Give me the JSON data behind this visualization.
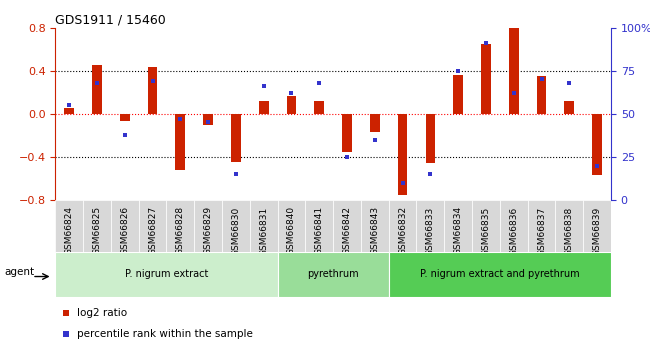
{
  "title": "GDS1911 / 15460",
  "samples": [
    "GSM66824",
    "GSM66825",
    "GSM66826",
    "GSM66827",
    "GSM66828",
    "GSM66829",
    "GSM66830",
    "GSM66831",
    "GSM66840",
    "GSM66841",
    "GSM66842",
    "GSM66843",
    "GSM66832",
    "GSM66833",
    "GSM66834",
    "GSM66835",
    "GSM66836",
    "GSM66837",
    "GSM66838",
    "GSM66839"
  ],
  "log2_ratio": [
    0.05,
    0.45,
    -0.07,
    0.43,
    -0.52,
    -0.1,
    -0.45,
    0.12,
    0.17,
    0.12,
    -0.35,
    -0.17,
    -0.75,
    -0.46,
    0.36,
    0.65,
    0.8,
    0.35,
    0.12,
    -0.57
  ],
  "percentile": [
    55,
    68,
    38,
    69,
    47,
    45,
    15,
    66,
    62,
    68,
    25,
    35,
    10,
    15,
    75,
    91,
    62,
    70,
    68,
    20
  ],
  "bar_color": "#cc2200",
  "dot_color": "#3333cc",
  "ylim_left": [
    -0.8,
    0.8
  ],
  "ylim_right": [
    0,
    100
  ],
  "yticks_left": [
    -0.8,
    -0.4,
    0.0,
    0.4,
    0.8
  ],
  "yticks_right": [
    0,
    25,
    50,
    75,
    100
  ],
  "ytick_right_labels": [
    "0",
    "25",
    "50",
    "75",
    "100%"
  ],
  "hlines_dotted": [
    0.4,
    -0.4
  ],
  "hline_red": 0.0,
  "left_tick_color": "#cc2200",
  "right_tick_color": "#3333cc",
  "group_defs": [
    {
      "start": 0,
      "end": 8,
      "label": "P. nigrum extract",
      "color": "#cceecc"
    },
    {
      "start": 8,
      "end": 12,
      "label": "pyrethrum",
      "color": "#99dd99"
    },
    {
      "start": 12,
      "end": 20,
      "label": "P. nigrum extract and pyrethrum",
      "color": "#55cc55"
    }
  ],
  "agent_label": "agent",
  "legend_items": [
    {
      "label": "log2 ratio",
      "color": "#cc2200"
    },
    {
      "label": "percentile rank within the sample",
      "color": "#3333cc"
    }
  ]
}
